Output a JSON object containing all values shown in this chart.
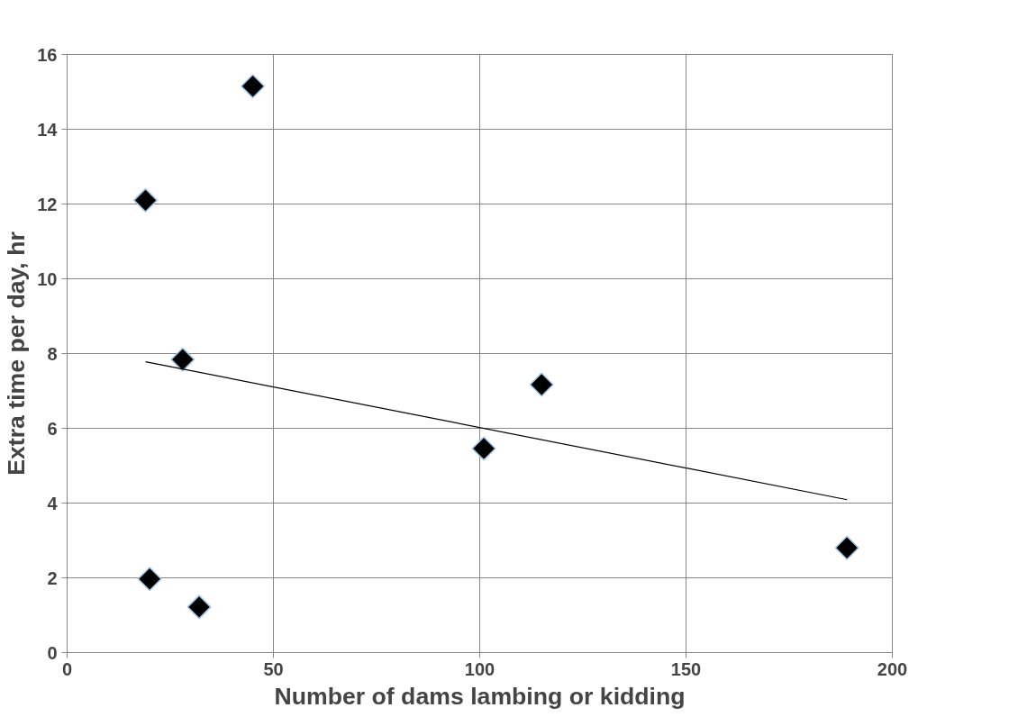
{
  "chart_data": {
    "type": "scatter",
    "xlabel": "Number of dams lambing or kidding",
    "ylabel": "Extra time per day, hr",
    "xlim": [
      0,
      200
    ],
    "xticks": [
      0,
      50,
      100,
      150,
      200
    ],
    "ylim": [
      0,
      16
    ],
    "yticks": [
      0,
      2,
      4,
      6,
      8,
      10,
      12,
      14,
      16
    ],
    "grid": true,
    "series": [
      {
        "color": "#000000",
        "marker": "diamond",
        "x": [
          19,
          45,
          28,
          20,
          32,
          101,
          115,
          189
        ],
        "values": [
          12.1,
          15.15,
          7.84,
          1.97,
          1.22,
          5.46,
          7.17,
          2.8
        ]
      },
      {
        "type": "line",
        "marker": "none",
        "color": "#000000",
        "x": [
          19,
          189
        ],
        "values": [
          7.78,
          4.09
        ]
      }
    ]
  }
}
